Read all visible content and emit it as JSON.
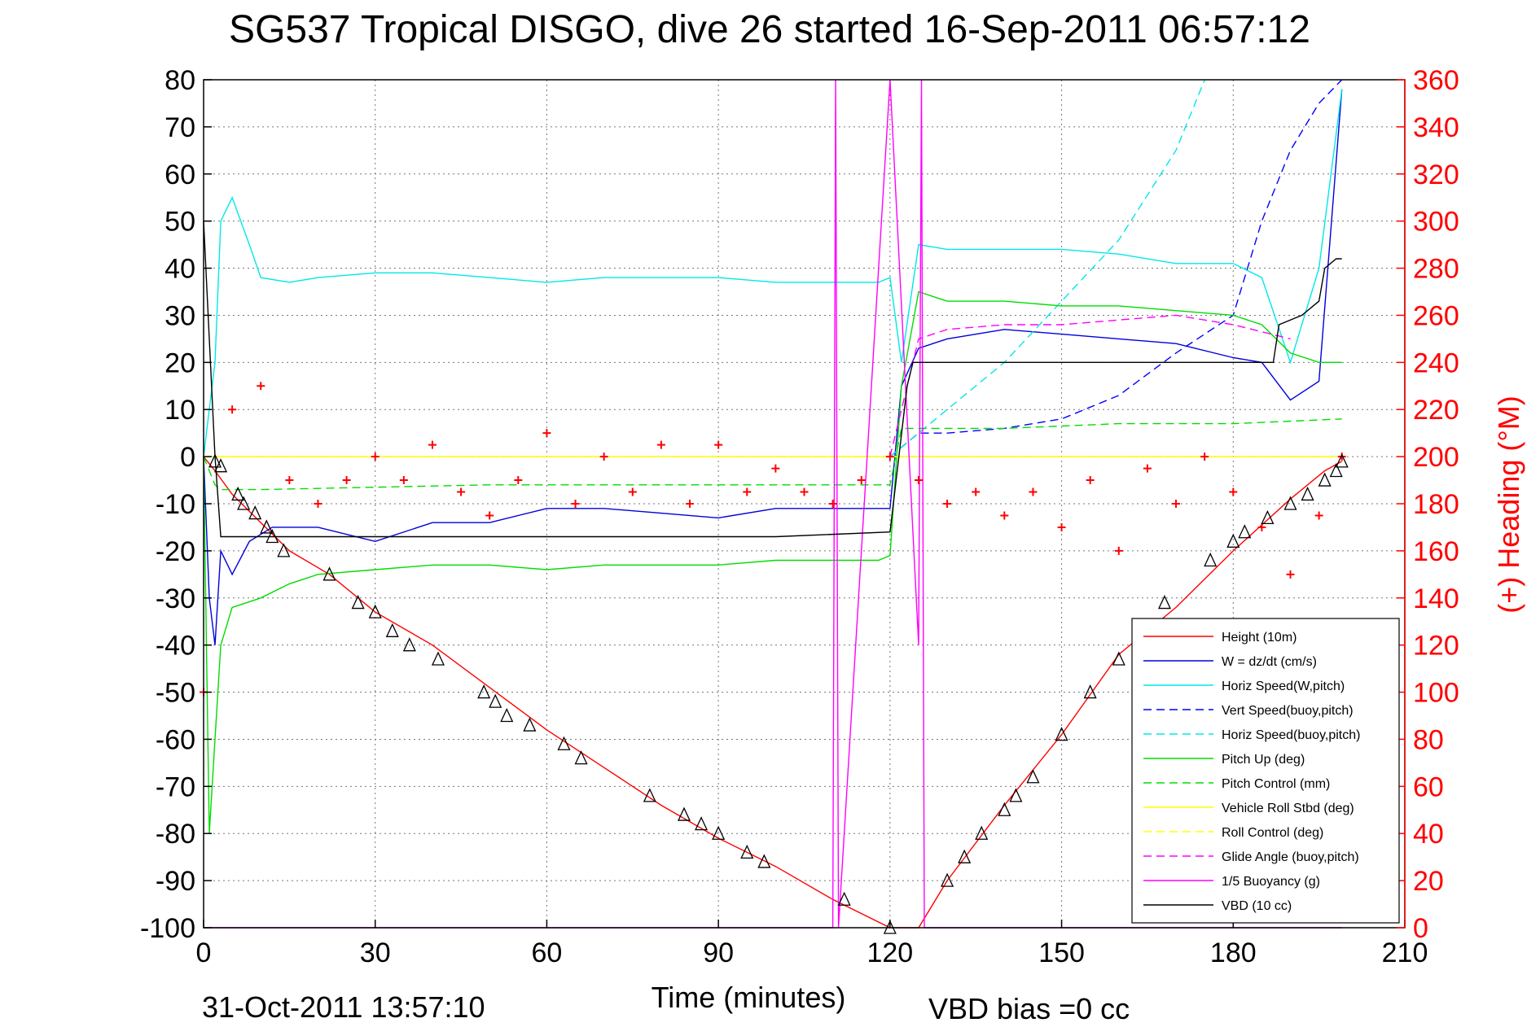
{
  "chart_data": {
    "type": "line",
    "title": "SG537 Tropical DISGO, dive 26 started 16-Sep-2011 06:57:12",
    "xlabel": "Time (minutes)",
    "ylabel_right": "(+) Heading (°M)",
    "footer_left": "31-Oct-2011 13:57:10",
    "footer_right": "VBD bias =0 cc",
    "xlim": [
      0,
      210
    ],
    "ylim": [
      -100,
      80
    ],
    "ylim_right": [
      0,
      360
    ],
    "xticks": [
      0,
      30,
      60,
      90,
      120,
      150,
      180,
      210
    ],
    "yticks": [
      80,
      70,
      60,
      50,
      40,
      30,
      20,
      10,
      0,
      -10,
      -20,
      -30,
      -40,
      -50,
      -60,
      -70,
      -80,
      -90,
      -100
    ],
    "yticks_right": [
      360,
      340,
      320,
      300,
      280,
      260,
      240,
      220,
      200,
      180,
      160,
      140,
      120,
      100,
      80,
      60,
      40,
      20,
      0
    ],
    "grid": true,
    "legend_position": "bottom-right",
    "colors": {
      "axis_right": "#ff0000"
    },
    "series": [
      {
        "name": "Height (10m)",
        "color": "#ff0000",
        "dash": false,
        "x": [
          0,
          2,
          5,
          10,
          15,
          22,
          30,
          40,
          50,
          60,
          70,
          80,
          90,
          100,
          110,
          120,
          125,
          130,
          140,
          150,
          160,
          170,
          180,
          190,
          196,
          199
        ],
        "y": [
          0,
          -3,
          -8,
          -14,
          -20,
          -25,
          -33,
          -40,
          -49,
          -58,
          -66,
          -74,
          -81,
          -87,
          -94,
          -100,
          -100,
          -90,
          -74,
          -59,
          -42,
          -32,
          -20,
          -9,
          -3,
          -1
        ]
      },
      {
        "name": "W = dz/dt (cm/s)",
        "color": "#0000dd",
        "dash": false,
        "x": [
          0,
          1,
          2,
          3,
          5,
          8,
          12,
          20,
          30,
          40,
          50,
          60,
          70,
          80,
          90,
          100,
          110,
          118,
          120,
          122,
          125,
          130,
          140,
          150,
          160,
          170,
          180,
          185,
          190,
          195,
          199
        ],
        "y": [
          0,
          -30,
          -40,
          -20,
          -25,
          -18,
          -15,
          -15,
          -18,
          -14,
          -14,
          -11,
          -11,
          -12,
          -13,
          -11,
          -11,
          -11,
          -11,
          15,
          23,
          25,
          27,
          26,
          25,
          24,
          21,
          20,
          12,
          16,
          78
        ]
      },
      {
        "name": "Horiz Speed(W,pitch)",
        "color": "#00e8e8",
        "dash": false,
        "x": [
          0,
          2,
          3,
          5,
          8,
          10,
          15,
          20,
          30,
          40,
          50,
          60,
          70,
          80,
          90,
          100,
          110,
          118,
          120,
          122,
          125,
          130,
          140,
          150,
          160,
          170,
          180,
          185,
          190,
          195,
          199
        ],
        "y": [
          0,
          20,
          50,
          55,
          45,
          38,
          37,
          38,
          39,
          39,
          38,
          37,
          38,
          38,
          38,
          37,
          37,
          37,
          38,
          20,
          45,
          44,
          44,
          44,
          43,
          41,
          41,
          38,
          20,
          40,
          78
        ]
      },
      {
        "name": "Vert Speed(buoy,pitch)",
        "color": "#0000ff",
        "dash": true,
        "x": [
          120,
          125,
          130,
          140,
          150,
          160,
          170,
          180,
          185,
          190,
          195,
          199
        ],
        "y": [
          0,
          5,
          5,
          6,
          8,
          13,
          22,
          30,
          50,
          65,
          75,
          80
        ]
      },
      {
        "name": "Horiz Speed(buoy,pitch)",
        "color": "#00e8e8",
        "dash": true,
        "x": [
          120,
          125,
          130,
          140,
          150,
          160,
          170,
          175
        ],
        "y": [
          0,
          5,
          10,
          20,
          33,
          46,
          65,
          80
        ]
      },
      {
        "name": "Pitch Up (deg)",
        "color": "#00dd00",
        "dash": false,
        "x": [
          0,
          1,
          2,
          3,
          5,
          10,
          15,
          20,
          30,
          40,
          50,
          60,
          70,
          80,
          90,
          100,
          110,
          118,
          120,
          122,
          125,
          130,
          140,
          150,
          160,
          170,
          180,
          185,
          190,
          195,
          199
        ],
        "y": [
          0,
          -80,
          -60,
          -40,
          -32,
          -30,
          -27,
          -25,
          -24,
          -23,
          -23,
          -24,
          -23,
          -23,
          -23,
          -22,
          -22,
          -22,
          -21,
          15,
          35,
          33,
          33,
          32,
          32,
          31,
          30,
          28,
          22,
          20,
          20
        ]
      },
      {
        "name": "Pitch Control (mm)",
        "color": "#00dd00",
        "dash": true,
        "x": [
          0,
          2,
          3,
          10,
          50,
          100,
          120,
          122,
          125,
          140,
          160,
          180,
          199
        ],
        "y": [
          0,
          -6,
          -7,
          -7,
          -6,
          -6,
          -6,
          6,
          6,
          6,
          7,
          7,
          8
        ]
      },
      {
        "name": "Vehicle Roll Stbd (deg)",
        "color": "#ffff00",
        "dash": false,
        "x": [
          0,
          20,
          60,
          100,
          120,
          140,
          160,
          180,
          199
        ],
        "y": [
          0,
          0,
          0,
          0,
          0,
          0,
          0,
          0,
          0
        ]
      },
      {
        "name": "Roll Control (deg)",
        "color": "#ffff00",
        "dash": true,
        "x": [
          0,
          20,
          60,
          100,
          120,
          140,
          160,
          180,
          199
        ],
        "y": [
          0,
          0,
          0,
          0,
          0,
          0,
          0,
          0,
          0
        ]
      },
      {
        "name": "Glide Angle (buoy,pitch)",
        "color": "#ff00ff",
        "dash": true,
        "x": [
          120,
          125,
          130,
          140,
          150,
          160,
          170,
          180,
          190
        ],
        "y": [
          0,
          25,
          27,
          28,
          28,
          29,
          30,
          28,
          25
        ]
      },
      {
        "name": "1/5 Buoyancy (g)",
        "color": "#ff00ff",
        "dash": false,
        "x": [
          0,
          1,
          110,
          110.5,
          111,
          120,
          125,
          125.5,
          126,
          199
        ],
        "y": [
          -100,
          -100,
          -100,
          80,
          -100,
          80,
          -40,
          80,
          -100,
          -100
        ]
      },
      {
        "name": "VBD (10 cc)",
        "color": "#000000",
        "dash": false,
        "x": [
          0,
          1,
          2,
          3,
          50,
          100,
          120,
          123,
          124,
          150,
          187,
          188,
          192,
          195,
          196,
          198,
          199
        ],
        "y": [
          50,
          25,
          0,
          -17,
          -17,
          -17,
          -16,
          15,
          20,
          20,
          20,
          28,
          30,
          33,
          40,
          42,
          42
        ]
      },
      {
        "name": "Heading",
        "color": "#ff0000",
        "axis": "right",
        "marker": "+",
        "x": [
          0,
          5,
          10,
          15,
          20,
          25,
          30,
          35,
          40,
          45,
          50,
          55,
          60,
          65,
          70,
          75,
          80,
          85,
          90,
          95,
          100,
          105,
          110,
          115,
          120,
          125,
          130,
          135,
          140,
          145,
          150,
          155,
          160,
          165,
          170,
          175,
          180,
          185,
          190,
          195,
          199
        ],
        "y": [
          100,
          220,
          230,
          190,
          180,
          190,
          200,
          190,
          205,
          185,
          175,
          190,
          210,
          180,
          200,
          185,
          205,
          180,
          205,
          185,
          195,
          185,
          180,
          190,
          200,
          190,
          180,
          185,
          175,
          185,
          170,
          190,
          160,
          195,
          180,
          200,
          185,
          170,
          150,
          175,
          200
        ]
      },
      {
        "name": "Height markers",
        "color": "#000000",
        "marker": "triangle",
        "x": [
          2,
          3,
          6,
          7,
          9,
          11,
          12,
          14,
          22,
          27,
          30,
          33,
          36,
          41,
          49,
          51,
          53,
          57,
          63,
          66,
          78,
          84,
          87,
          90,
          95,
          98,
          112,
          120,
          130,
          133,
          136,
          140,
          142,
          145,
          150,
          155,
          160,
          168,
          176,
          180,
          182,
          186,
          190,
          193,
          196,
          198,
          199
        ],
        "y": [
          -1,
          -2,
          -8,
          -10,
          -12,
          -15,
          -17,
          -20,
          -25,
          -31,
          -33,
          -37,
          -40,
          -43,
          -50,
          -52,
          -55,
          -57,
          -61,
          -64,
          -72,
          -76,
          -78,
          -80,
          -84,
          -86,
          -94,
          -100,
          -90,
          -85,
          -80,
          -75,
          -72,
          -68,
          -59,
          -50,
          -43,
          -31,
          -22,
          -18,
          -16,
          -13,
          -10,
          -8,
          -5,
          -3,
          -1
        ]
      }
    ]
  }
}
